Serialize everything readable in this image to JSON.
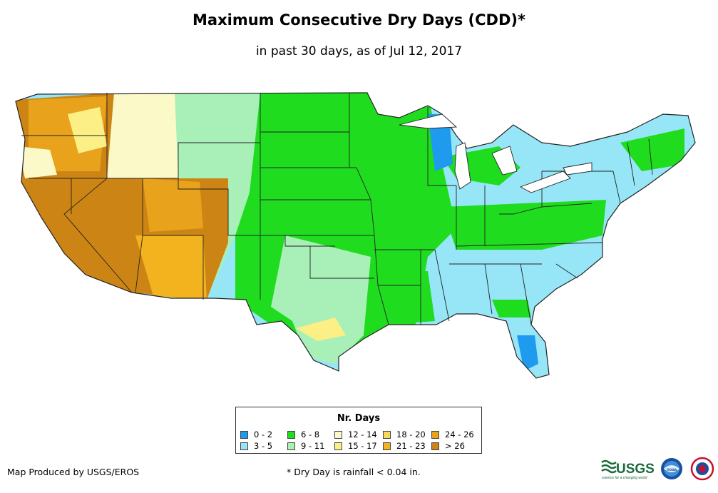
{
  "title": "Maximum Consecutive Dry Days (CDD)*",
  "subtitle": "in past 30 days, as of Jul 12, 2017",
  "legend": {
    "title": "Nr. Days",
    "items": [
      {
        "label": "0 - 2",
        "color": "#1e9bef"
      },
      {
        "label": "3 - 5",
        "color": "#96e6f8"
      },
      {
        "label": "6 - 8",
        "color": "#1fdc1f"
      },
      {
        "label": "9 - 11",
        "color": "#a8f0b8"
      },
      {
        "label": "12 - 14",
        "color": "#fcf9c8"
      },
      {
        "label": "15 - 17",
        "color": "#fbef86"
      },
      {
        "label": "18 - 20",
        "color": "#f6d860"
      },
      {
        "label": "21 - 23",
        "color": "#f2b31e"
      },
      {
        "label": "24 - 26",
        "color": "#e8a21b"
      },
      {
        "label": "> 26",
        "color": "#cc8514"
      }
    ]
  },
  "credit": "Map Produced by USGS/EROS",
  "footnote": "* Dry Day is rainfall < 0.04 in.",
  "logos": {
    "usgs": "USGS",
    "usgs_tagline": "science for a changing world",
    "noaa": "noaa"
  }
}
